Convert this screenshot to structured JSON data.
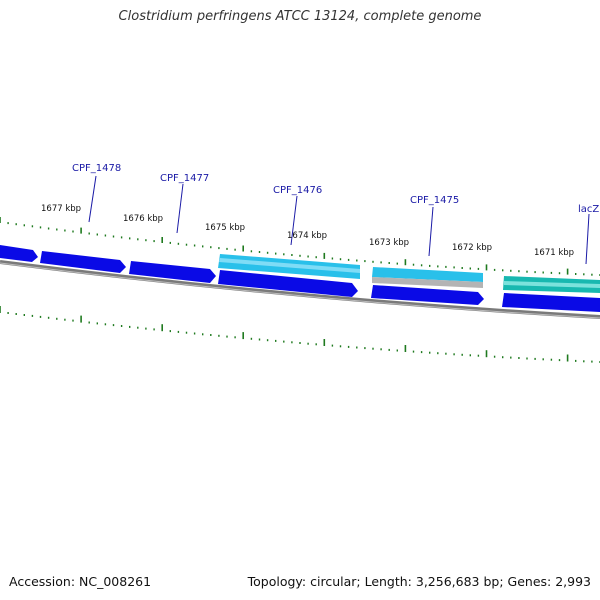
{
  "title": "Clostridium perfringens ATCC 13124, complete genome",
  "footer": {
    "accession": "Accession: NC_008261",
    "summary": "Topology: circular; Length: 3,256,683 bp; Genes: 2,993"
  },
  "colors": {
    "backbone": "#7a7a7a",
    "tick": "#1f7a1f",
    "gene_blue": "#0a0ae6",
    "gene_cyan": "#29c0ea",
    "gene_teal": "#18b8b0",
    "gene_grey": "#b4b4b4",
    "label_line": "#1a1aa6"
  },
  "kbp_labels": [
    "1677 kbp",
    "1676 kbp",
    "1675 kbp",
    "1674 kbp",
    "1673 kbp",
    "1672 kbp",
    "1671 kbp"
  ],
  "gene_labels": [
    "CPF_1478",
    "CPF_1477",
    "CPF_1476",
    "CPF_1475",
    "lacZ"
  ],
  "genes": [
    {
      "track": "lower",
      "color": "gene_blue",
      "arrow": true
    },
    {
      "track": "lower",
      "color": "gene_blue",
      "arrow": true
    },
    {
      "track": "lower",
      "color": "gene_blue",
      "arrow": true
    },
    {
      "track": "lower",
      "color": "gene_blue",
      "arrow": true
    },
    {
      "track": "upper",
      "color": "gene_cyan",
      "arrow": false
    },
    {
      "track": "lower",
      "color": "gene_blue",
      "arrow": true
    },
    {
      "track": "upper",
      "color": "gene_cyan",
      "arrow": false
    },
    {
      "track": "upper",
      "color": "gene_teal",
      "arrow": false
    },
    {
      "track": "lower",
      "color": "gene_blue",
      "arrow": false
    }
  ]
}
